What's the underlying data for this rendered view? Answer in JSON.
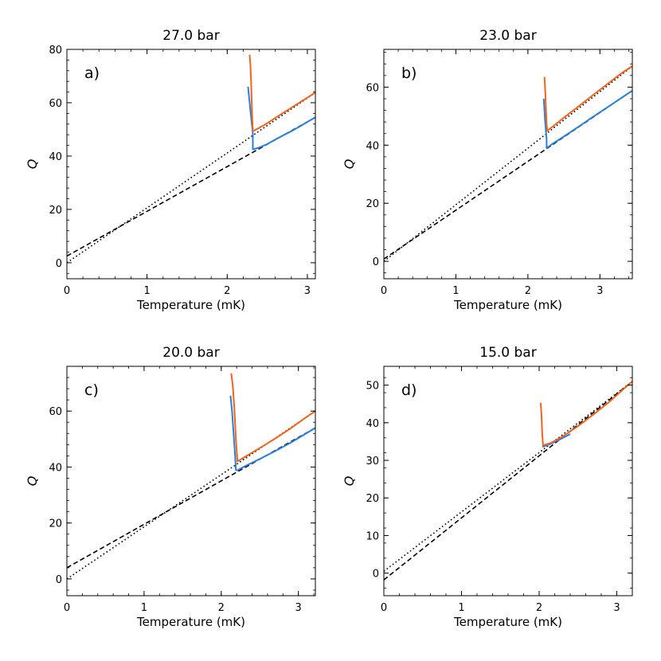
{
  "chart_data": [
    {
      "type": "line",
      "title": "27.0 bar",
      "panel_label": "a)",
      "xlabel": "Temperature (mK)",
      "ylabel": "Q",
      "xlim": [
        0,
        3.1
      ],
      "ylim": [
        -6,
        80
      ],
      "xticks": [
        0,
        1,
        2,
        3
      ],
      "yticks": [
        0,
        20,
        40,
        60,
        80
      ],
      "series": [
        {
          "name": "orange",
          "color": "#f0641e",
          "style": "solid",
          "x": [
            2.28,
            2.29,
            2.3,
            2.31,
            2.32,
            2.34,
            2.4,
            2.5,
            2.6,
            2.7,
            2.8,
            2.9,
            3.0,
            3.1
          ],
          "y": [
            78,
            74,
            66,
            56,
            49.5,
            49.6,
            50.6,
            52.3,
            54.3,
            56.2,
            58.1,
            60.0,
            61.9,
            63.8
          ]
        },
        {
          "name": "blue",
          "color": "#2a7fd8",
          "style": "solid",
          "x": [
            2.26,
            2.28,
            2.3,
            2.32,
            2.32,
            2.4,
            2.5,
            2.6,
            2.7,
            2.8,
            2.9,
            3.0,
            3.1
          ],
          "y": [
            66,
            60,
            54,
            48.5,
            42.5,
            43.2,
            44.5,
            46.2,
            47.8,
            49.3,
            51.0,
            52.8,
            54.5
          ]
        },
        {
          "name": "dotted fit",
          "color": "#000000",
          "style": "dotted",
          "x": [
            0,
            3.1
          ],
          "y": [
            0,
            63.8
          ]
        },
        {
          "name": "dashed fit",
          "color": "#000000",
          "style": "dashed",
          "x": [
            0,
            3.1
          ],
          "y": [
            2.5,
            54.5
          ]
        }
      ]
    },
    {
      "type": "line",
      "title": "23.0 bar",
      "panel_label": "b)",
      "xlabel": "Temperature (mK)",
      "ylabel": "Q",
      "xlim": [
        0,
        3.45
      ],
      "ylim": [
        -6,
        73
      ],
      "xticks": [
        0,
        1,
        2,
        3
      ],
      "yticks": [
        0,
        20,
        40,
        60
      ],
      "series": [
        {
          "name": "orange",
          "color": "#f0641e",
          "style": "solid",
          "x": [
            2.23,
            2.24,
            2.25,
            2.26,
            2.27,
            2.35,
            2.5,
            2.7,
            2.9,
            3.1,
            3.3,
            3.45
          ],
          "y": [
            63.5,
            59,
            53,
            47,
            45,
            46.5,
            49.5,
            53.3,
            57.2,
            61.0,
            64.8,
            67.2
          ]
        },
        {
          "name": "blue",
          "color": "#2a7fd8",
          "style": "solid",
          "x": [
            2.22,
            2.24,
            2.26,
            2.26,
            2.35,
            2.5,
            2.7,
            2.9,
            3.1,
            3.3,
            3.45
          ],
          "y": [
            56,
            48,
            42,
            39,
            40.6,
            43.0,
            46.3,
            49.7,
            53.0,
            56.3,
            58.8
          ]
        },
        {
          "name": "dotted fit",
          "color": "#000000",
          "style": "dotted",
          "x": [
            0,
            3.45
          ],
          "y": [
            0,
            67.2
          ]
        },
        {
          "name": "dashed fit",
          "color": "#000000",
          "style": "dashed",
          "x": [
            0,
            3.45
          ],
          "y": [
            0.8,
            58.8
          ]
        }
      ]
    },
    {
      "type": "line",
      "title": "20.0 bar",
      "panel_label": "c)",
      "xlabel": "Temperature (mK)",
      "ylabel": "Q",
      "xlim": [
        0,
        3.22
      ],
      "ylim": [
        -6,
        76
      ],
      "xticks": [
        0,
        1,
        2,
        3
      ],
      "yticks": [
        0,
        20,
        40,
        60
      ],
      "series": [
        {
          "name": "orange",
          "color": "#f0641e",
          "style": "solid",
          "x": [
            2.13,
            2.15,
            2.17,
            2.19,
            2.21,
            2.3,
            2.5,
            2.7,
            2.9,
            3.1,
            3.22
          ],
          "y": [
            73.5,
            69,
            61,
            50,
            42,
            43.5,
            46.8,
            50.2,
            53.8,
            57.8,
            60.0
          ]
        },
        {
          "name": "blue",
          "color": "#2a7fd8",
          "style": "solid",
          "x": [
            2.12,
            2.14,
            2.16,
            2.18,
            2.19,
            2.21,
            2.3,
            2.5,
            2.7,
            2.9,
            3.1,
            3.22
          ],
          "y": [
            65.5,
            60,
            52,
            44,
            39,
            38.8,
            40.2,
            42.9,
            45.7,
            48.7,
            52.0,
            54.0
          ]
        },
        {
          "name": "dotted fit",
          "color": "#000000",
          "style": "dotted",
          "x": [
            0,
            3.22
          ],
          "y": [
            0,
            60.0
          ]
        },
        {
          "name": "dashed fit",
          "color": "#000000",
          "style": "dashed",
          "x": [
            0,
            3.22
          ],
          "y": [
            4,
            54.0
          ]
        }
      ]
    },
    {
      "type": "line",
      "title": "15.0 bar",
      "panel_label": "d)",
      "xlabel": "Temperature (mK)",
      "ylabel": "Q",
      "xlim": [
        0,
        3.2
      ],
      "ylim": [
        -6,
        55
      ],
      "xticks": [
        0,
        1,
        2,
        3
      ],
      "yticks": [
        0,
        10,
        20,
        30,
        40,
        50
      ],
      "series": [
        {
          "name": "orange",
          "color": "#f0641e",
          "style": "solid",
          "x": [
            2.02,
            2.03,
            2.04,
            2.05,
            2.15,
            2.3,
            2.5,
            2.7,
            2.9,
            3.1,
            3.2
          ],
          "y": [
            45.3,
            42,
            37,
            34,
            34.6,
            36.3,
            39.1,
            42.2,
            45.5,
            49.2,
            51.0
          ]
        },
        {
          "name": "blue",
          "color": "#2a7fd8",
          "style": "solid",
          "x": [
            2.04,
            2.1,
            2.2,
            2.3,
            2.4
          ],
          "y": [
            33.6,
            34.0,
            34.9,
            35.9,
            37.0
          ]
        },
        {
          "name": "dotted fit",
          "color": "#000000",
          "style": "dotted",
          "x": [
            0,
            3.2
          ],
          "y": [
            0.5,
            51.0
          ]
        },
        {
          "name": "dashed fit",
          "color": "#000000",
          "style": "dashed",
          "x": [
            0,
            3.2
          ],
          "y": [
            -1.8,
            51.0
          ]
        }
      ]
    }
  ]
}
